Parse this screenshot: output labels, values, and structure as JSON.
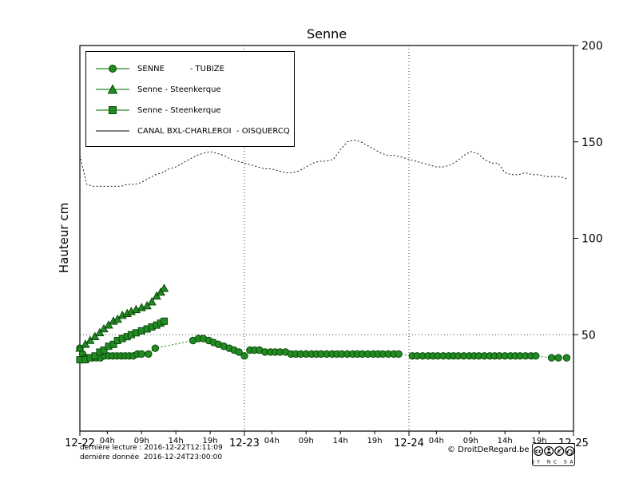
{
  "title": "Senne",
  "ylabel": "Hauteur cm",
  "colors": {
    "green": "#228B22",
    "green_dark": "#0a4a0a",
    "line_black": "#000000"
  },
  "legend": {
    "items": [
      {
        "label": "SENNE          - TUBIZE",
        "marker": "circle"
      },
      {
        "label": "Senne - Steenkerque",
        "marker": "triangle"
      },
      {
        "label": "Senne - Steenkerque",
        "marker": "square"
      },
      {
        "label": "CANAL BXL-CHARLEROI  - OISQUERCQ",
        "marker": "line"
      }
    ]
  },
  "footer": {
    "last_reading": "dernière lecture : 2016-12-22T12:11:09",
    "last_data": "dernière donnée  2016-12-24T23:00:00",
    "copyright": "© DroitDeRegard.be",
    "license": "CC BY-NC-SA"
  },
  "chart_data": {
    "type": "line",
    "title": "Senne",
    "xlabel": "",
    "ylabel": "Hauteur cm",
    "ylim": [
      0,
      200
    ],
    "x_hours_total": 72,
    "grid": "partial-dotted",
    "legend_position": "upper-left",
    "y_ticks": [
      50,
      100,
      150,
      200
    ],
    "x_major_ticks": [
      {
        "hour": 0,
        "label": "12-22"
      },
      {
        "hour": 24,
        "label": "12-23"
      },
      {
        "hour": 48,
        "label": "12-24"
      },
      {
        "hour": 72,
        "label": "12-25"
      }
    ],
    "x_minor_ticks": {
      "day_starts": [
        0,
        24,
        48
      ],
      "hours": [
        4,
        9,
        14,
        19
      ],
      "labels": [
        "04h",
        "09h",
        "14h",
        "19h"
      ]
    },
    "grid_vertical_hours": [
      24,
      48
    ],
    "grid_horizontal_values": [
      50
    ],
    "series": [
      {
        "name": "CANAL BXL-CHARLEROI - OISQUERCQ",
        "marker": "none",
        "line": "dotted",
        "color": "#000000",
        "start_hour": 0,
        "step_hours": 1,
        "values": [
          143,
          128,
          127,
          127,
          127,
          127,
          127,
          128,
          128,
          129,
          131,
          133,
          134,
          136,
          137,
          139,
          141,
          143,
          144,
          145,
          144,
          143,
          141,
          140,
          139,
          138,
          137,
          136,
          136,
          135,
          134,
          134,
          135,
          137,
          139,
          140,
          140,
          141,
          146,
          150,
          151,
          150,
          148,
          146,
          144,
          143,
          143,
          142,
          141,
          140,
          139,
          138,
          137,
          137,
          138,
          140,
          143,
          145,
          144,
          141,
          139,
          139,
          134,
          133,
          133,
          134,
          133,
          133,
          132,
          132,
          132,
          131
        ]
      },
      {
        "name": "SENNE - TUBIZE",
        "marker": "circle",
        "line": "dotted",
        "color": "#228B22",
        "points": [
          [
            0,
            43
          ],
          [
            0.4,
            40
          ],
          [
            0.8,
            38
          ],
          [
            1.2,
            38
          ],
          [
            1.8,
            38
          ],
          [
            2.4,
            38
          ],
          [
            3,
            38
          ],
          [
            3.6,
            39
          ],
          [
            4.2,
            39
          ],
          [
            4.8,
            39
          ],
          [
            5.4,
            39
          ],
          [
            6,
            39
          ],
          [
            6.6,
            39
          ],
          [
            7.2,
            39
          ],
          [
            7.8,
            39
          ],
          [
            8.4,
            40
          ],
          [
            9,
            40
          ],
          [
            10,
            40
          ],
          [
            11,
            43
          ],
          [
            16.5,
            47
          ],
          [
            17.3,
            48
          ],
          [
            18,
            48
          ],
          [
            18.8,
            47
          ],
          [
            19.5,
            46
          ],
          [
            20.2,
            45
          ],
          [
            21,
            44
          ],
          [
            21.8,
            43
          ],
          [
            22.5,
            42
          ],
          [
            23.2,
            41
          ],
          [
            24,
            39
          ],
          [
            24.8,
            42
          ],
          [
            25.5,
            42
          ],
          [
            26.2,
            42
          ],
          [
            27,
            41
          ],
          [
            27.8,
            41
          ],
          [
            28.5,
            41
          ],
          [
            29.2,
            41
          ],
          [
            30,
            41
          ],
          [
            30.8,
            40
          ],
          [
            31.5,
            40
          ],
          [
            32.2,
            40
          ],
          [
            33,
            40
          ],
          [
            33.8,
            40
          ],
          [
            34.5,
            40
          ],
          [
            35.2,
            40
          ],
          [
            36,
            40
          ],
          [
            36.8,
            40
          ],
          [
            37.5,
            40
          ],
          [
            38.2,
            40
          ],
          [
            39,
            40
          ],
          [
            39.8,
            40
          ],
          [
            40.5,
            40
          ],
          [
            41.2,
            40
          ],
          [
            42,
            40
          ],
          [
            42.8,
            40
          ],
          [
            43.5,
            40
          ],
          [
            44.2,
            40
          ],
          [
            45,
            40
          ],
          [
            45.8,
            40
          ],
          [
            46.5,
            40
          ],
          [
            48.5,
            39
          ],
          [
            49.2,
            39
          ],
          [
            50,
            39
          ],
          [
            50.8,
            39
          ],
          [
            51.5,
            39
          ],
          [
            52.2,
            39
          ],
          [
            53,
            39
          ],
          [
            53.8,
            39
          ],
          [
            54.5,
            39
          ],
          [
            55.2,
            39
          ],
          [
            56,
            39
          ],
          [
            56.8,
            39
          ],
          [
            57.5,
            39
          ],
          [
            58.2,
            39
          ],
          [
            59,
            39
          ],
          [
            59.8,
            39
          ],
          [
            60.5,
            39
          ],
          [
            61.2,
            39
          ],
          [
            62,
            39
          ],
          [
            62.8,
            39
          ],
          [
            63.5,
            39
          ],
          [
            64.2,
            39
          ],
          [
            65,
            39
          ],
          [
            65.8,
            39
          ],
          [
            66.5,
            39
          ],
          [
            68.8,
            38
          ],
          [
            69.8,
            38
          ],
          [
            71,
            38
          ]
        ]
      },
      {
        "name": "Senne - Steenkerque (triangles)",
        "marker": "triangle",
        "line": "solid",
        "color": "#228B22",
        "points": [
          [
            0,
            43
          ],
          [
            0.8,
            45
          ],
          [
            1.5,
            47
          ],
          [
            2.2,
            49
          ],
          [
            2.9,
            51
          ],
          [
            3.5,
            53
          ],
          [
            4.2,
            55
          ],
          [
            4.9,
            57
          ],
          [
            5.5,
            58
          ],
          [
            6.2,
            60
          ],
          [
            6.9,
            61
          ],
          [
            7.5,
            62
          ],
          [
            8.2,
            63
          ],
          [
            9,
            64
          ],
          [
            9.8,
            65
          ],
          [
            10.5,
            67
          ],
          [
            11.2,
            70
          ],
          [
            11.8,
            72
          ],
          [
            12.3,
            74
          ]
        ]
      },
      {
        "name": "Senne - Steenkerque (squares)",
        "marker": "square",
        "line": "solid",
        "color": "#228B22",
        "points": [
          [
            0,
            37
          ],
          [
            0.8,
            37
          ],
          [
            1.5,
            38
          ],
          [
            2.2,
            39
          ],
          [
            2.9,
            41
          ],
          [
            3.5,
            42
          ],
          [
            4.2,
            44
          ],
          [
            4.9,
            45
          ],
          [
            5.5,
            47
          ],
          [
            6.2,
            48
          ],
          [
            6.9,
            49
          ],
          [
            7.5,
            50
          ],
          [
            8.2,
            51
          ],
          [
            9,
            52
          ],
          [
            9.8,
            53
          ],
          [
            10.5,
            54
          ],
          [
            11.2,
            55
          ],
          [
            11.8,
            56
          ],
          [
            12.3,
            57
          ]
        ]
      }
    ]
  }
}
